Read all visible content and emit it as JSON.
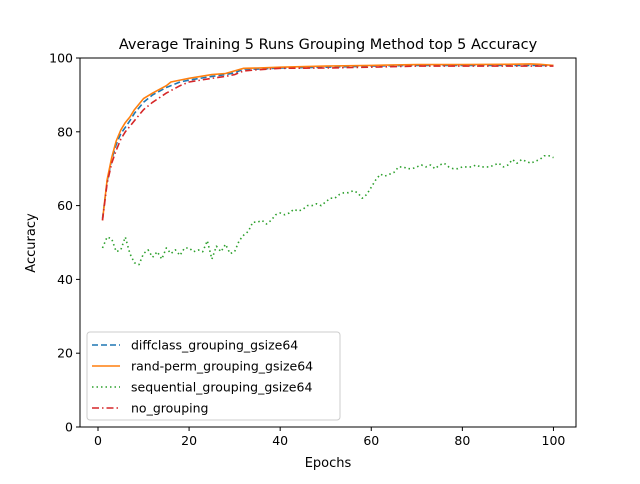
{
  "chart_data": {
    "type": "line",
    "title": "Average Training 5 Runs Grouping Method top 5 Accuracy",
    "xlabel": "Epochs",
    "ylabel": "Accuracy",
    "xlim": [
      -3.95,
      104.95
    ],
    "ylim": [
      0,
      100
    ],
    "xticks": [
      0,
      20,
      40,
      60,
      80,
      100
    ],
    "yticks": [
      0,
      20,
      40,
      60,
      80,
      100
    ],
    "grid": false,
    "legend_position": "lower left",
    "series": [
      {
        "name": "diffclass_grouping_gsize64",
        "color": "#1f77b4",
        "dash": "dashed",
        "x": [
          1,
          2,
          3,
          4,
          5,
          6,
          7,
          8,
          10,
          12,
          15,
          18,
          20,
          25,
          28,
          30,
          32,
          35,
          40,
          50,
          60,
          70,
          80,
          90,
          95,
          100
        ],
        "y": [
          56.5,
          66.5,
          72.5,
          76.5,
          79.5,
          81.2,
          83,
          85,
          88,
          90,
          92,
          93.5,
          94,
          95,
          95.5,
          96,
          97,
          97,
          97.3,
          97.5,
          97.8,
          98,
          98,
          98,
          98,
          98
        ]
      },
      {
        "name": "rand-perm_grouping_gsize64",
        "color": "#ff7f0e",
        "dash": "solid",
        "x": [
          1,
          2,
          3,
          4,
          5,
          6,
          7,
          8,
          9,
          10,
          12,
          15,
          16,
          18,
          20,
          25,
          28,
          30,
          32,
          35,
          40,
          50,
          60,
          70,
          80,
          90,
          95,
          97,
          100
        ],
        "y": [
          56,
          67,
          73,
          77.5,
          80.5,
          82.5,
          84,
          86,
          87.5,
          89,
          90.5,
          92.5,
          93.5,
          94,
          94.5,
          95.5,
          95.8,
          96.5,
          97.2,
          97.3,
          97.5,
          97.8,
          98,
          98.2,
          98.2,
          98.3,
          98.4,
          98.3,
          98
        ]
      },
      {
        "name": "sequential_grouping_gsize64",
        "color": "#2ca02c",
        "dash": "dotted",
        "x": [
          1,
          2,
          3,
          4,
          5,
          6,
          7,
          8,
          9,
          10,
          11,
          12,
          13,
          14,
          15,
          16,
          17,
          18,
          19,
          20,
          21,
          22,
          23,
          24,
          25,
          26,
          27,
          28,
          29,
          30,
          31,
          32,
          33,
          34,
          35,
          36,
          37,
          38,
          39,
          40,
          41,
          42,
          43,
          44,
          45,
          46,
          47,
          48,
          49,
          50,
          51,
          52,
          53,
          54,
          55,
          56,
          57,
          58,
          59,
          60,
          61,
          62,
          63,
          64,
          65,
          66,
          67,
          68,
          69,
          70,
          71,
          72,
          73,
          74,
          75,
          76,
          77,
          78,
          79,
          80,
          81,
          82,
          83,
          84,
          85,
          86,
          87,
          88,
          89,
          90,
          91,
          92,
          93,
          94,
          95,
          96,
          97,
          98,
          99,
          100
        ],
        "y": [
          48.5,
          51.5,
          51,
          47.5,
          48,
          51.5,
          47,
          44.5,
          44,
          47,
          48,
          46,
          47.5,
          45.5,
          48.5,
          47,
          48,
          46.5,
          48.5,
          48.5,
          47.5,
          48,
          47.5,
          50.5,
          45.5,
          49,
          47.5,
          49.5,
          47,
          47.5,
          50.5,
          52,
          53,
          55.5,
          55.5,
          56,
          55,
          56,
          57.5,
          58,
          57.5,
          58,
          59,
          58.5,
          59,
          60,
          60,
          60.5,
          60,
          61,
          62,
          62,
          63,
          63.5,
          63.5,
          64,
          63.5,
          62,
          63,
          65,
          67,
          68.5,
          68,
          68.5,
          69,
          70.5,
          70.5,
          70,
          70,
          70.5,
          71,
          70.5,
          71,
          70,
          71,
          71.5,
          70.5,
          70,
          70,
          70.5,
          70.5,
          70.5,
          71,
          70.5,
          70.5,
          70.5,
          71,
          71.5,
          70.5,
          71,
          72.5,
          71.5,
          72.5,
          72,
          71.5,
          72,
          72.5,
          73.5,
          73.5,
          73
        ]
      },
      {
        "name": "no_grouping",
        "color": "#d62728",
        "dash": "dashdot",
        "x": [
          1,
          2,
          3,
          4,
          5,
          6,
          7,
          8,
          10,
          12,
          15,
          18,
          20,
          25,
          28,
          30,
          32,
          35,
          40,
          50,
          60,
          70,
          80,
          90,
          95,
          100
        ],
        "y": [
          56,
          66,
          71.5,
          75,
          78,
          80,
          81.5,
          83,
          86,
          88,
          90.5,
          92.5,
          93.5,
          94.5,
          95,
          95.5,
          96.5,
          96.8,
          97.2,
          97.3,
          97.5,
          97.8,
          97.8,
          97.8,
          97.8,
          97.8
        ]
      }
    ]
  }
}
